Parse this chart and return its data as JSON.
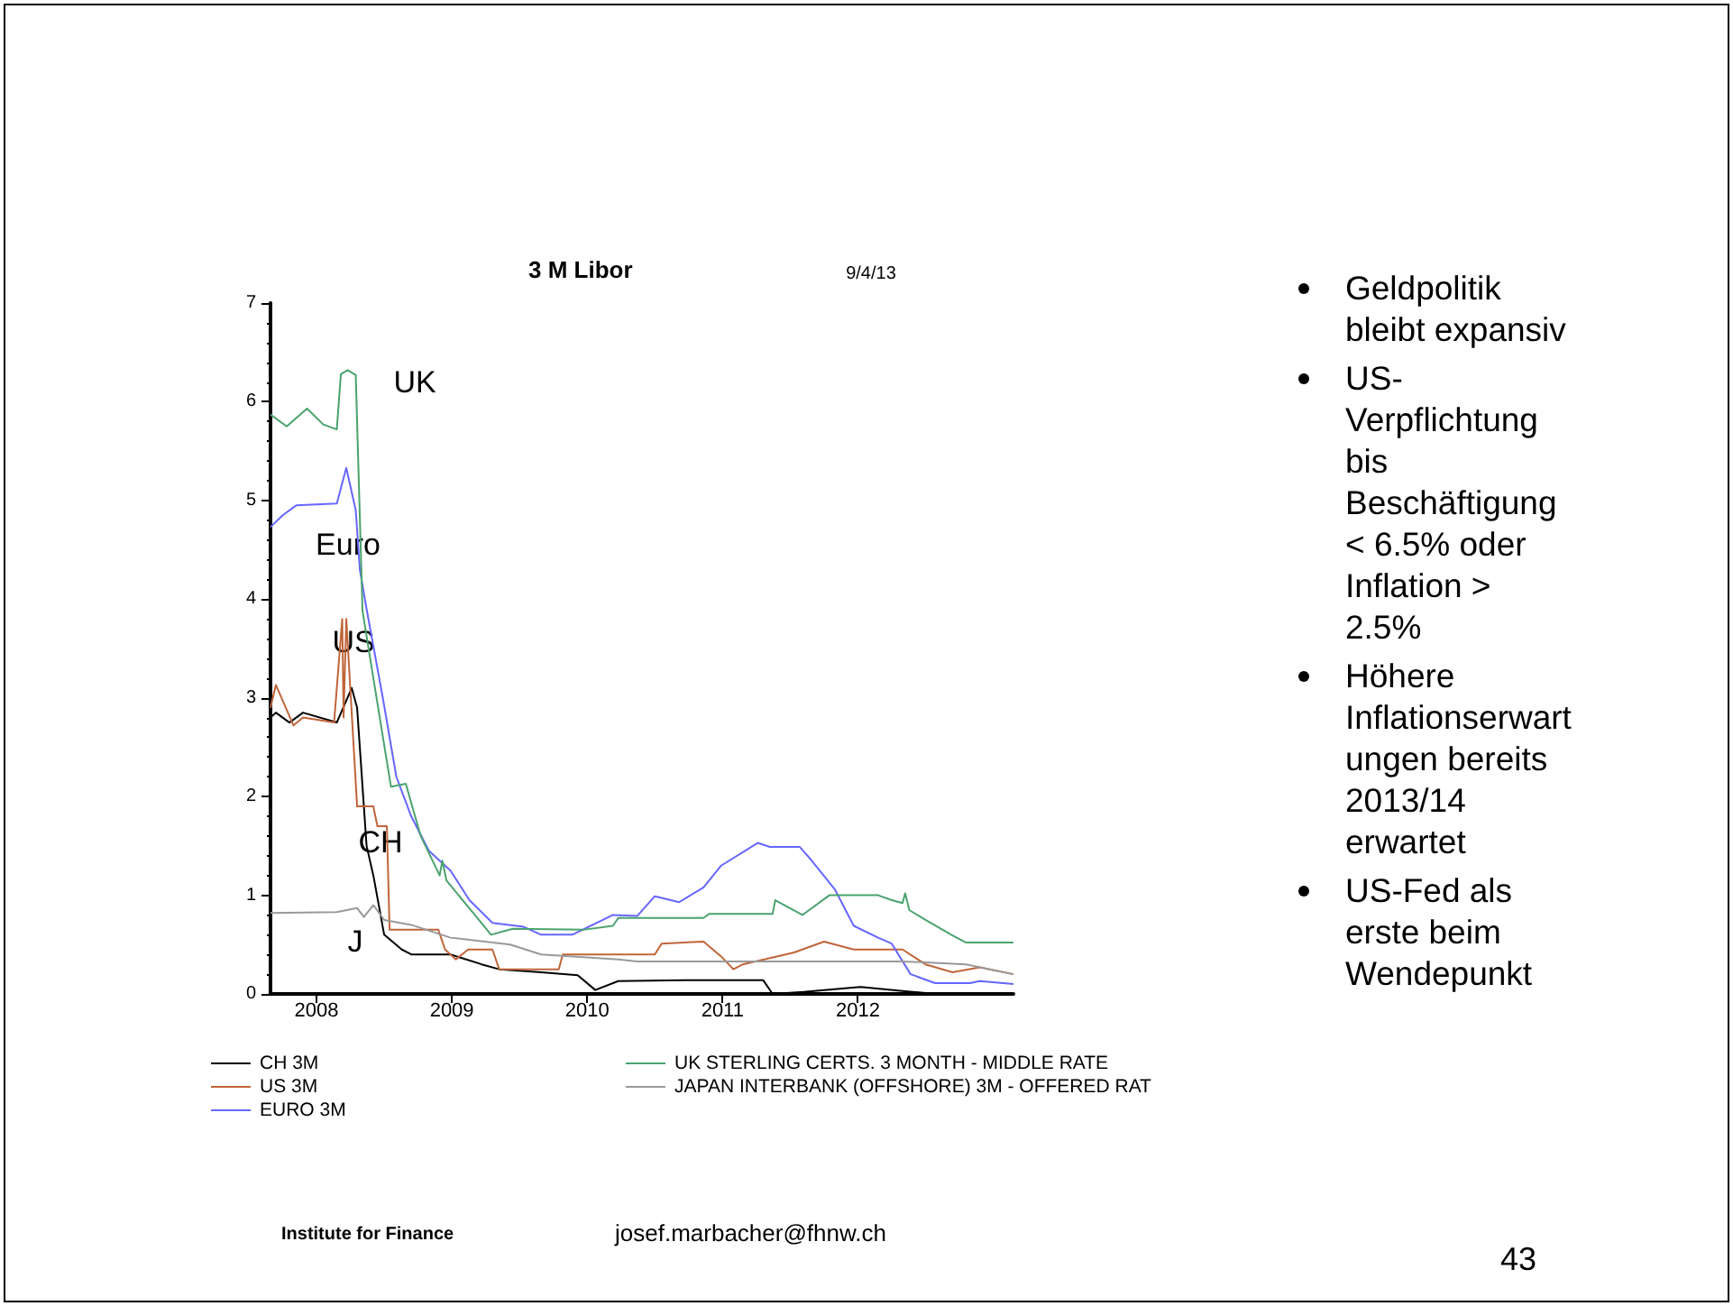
{
  "chart_data": {
    "type": "line",
    "title": "3 M Libor",
    "xlim": [
      2008.16,
      2013.65
    ],
    "xticks": [
      {
        "value": 2008.5,
        "label": "2008"
      },
      {
        "value": 2009.5,
        "label": "2009"
      },
      {
        "value": 2010.5,
        "label": "2010"
      },
      {
        "value": 2011.5,
        "label": "2011"
      },
      {
        "value": 2012.5,
        "label": "2012"
      }
    ],
    "ylim": [
      0,
      7
    ],
    "yticks": [
      0,
      1,
      2,
      3,
      4,
      5,
      6,
      7
    ],
    "grid": false,
    "legend": "bottom",
    "marker": "none",
    "line_style": "solid",
    "series": [
      {
        "name": "CH 3M",
        "color": "#000000",
        "x": [
          2008.16,
          2008.2,
          2008.3,
          2008.4,
          2008.65,
          2008.76,
          2008.8,
          2008.87,
          2008.92,
          2009.0,
          2009.13,
          2009.2,
          2009.49,
          2009.72,
          2009.85,
          2010.16,
          2010.43,
          2010.56,
          2010.73,
          2011.23,
          2011.8,
          2011.87,
          2012.1,
          2012.52,
          2012.83,
          2013.0,
          2013.65
        ],
        "values": [
          2.8,
          2.85,
          2.75,
          2.85,
          2.75,
          3.1,
          2.9,
          1.5,
          1.2,
          0.6,
          0.45,
          0.4,
          0.4,
          0.3,
          0.25,
          0.22,
          0.19,
          0.04,
          0.13,
          0.14,
          0.14,
          0.0,
          0.02,
          0.07,
          0.03,
          0.01,
          0.01
        ]
      },
      {
        "name": "US 3M",
        "color": "#c0653a",
        "x": [
          2008.16,
          2008.2,
          2008.33,
          2008.4,
          2008.63,
          2008.69,
          2008.7,
          2008.72,
          2008.8,
          2008.92,
          2008.95,
          2009.02,
          2009.04,
          2009.4,
          2009.45,
          2009.53,
          2009.62,
          2009.8,
          2009.85,
          2010.29,
          2010.32,
          2011.0,
          2011.05,
          2011.36,
          2011.49,
          2011.58,
          2011.65,
          2012.03,
          2012.25,
          2012.47,
          2012.83,
          2013.0,
          2013.2,
          2013.4,
          2013.65
        ],
        "values": [
          2.9,
          3.13,
          2.72,
          2.8,
          2.75,
          3.8,
          2.8,
          3.8,
          1.9,
          1.9,
          1.7,
          1.7,
          0.65,
          0.65,
          0.45,
          0.35,
          0.45,
          0.45,
          0.25,
          0.25,
          0.4,
          0.4,
          0.51,
          0.53,
          0.38,
          0.25,
          0.3,
          0.42,
          0.53,
          0.45,
          0.45,
          0.3,
          0.22,
          0.27,
          0.2
        ]
      },
      {
        "name": "EURO 3M",
        "color": "#6666ff",
        "x": [
          2008.16,
          2008.25,
          2008.35,
          2008.65,
          2008.72,
          2008.79,
          2008.82,
          2008.87,
          2008.99,
          2009.09,
          2009.2,
          2009.33,
          2009.49,
          2009.63,
          2009.8,
          2010.03,
          2010.16,
          2010.39,
          2010.69,
          2010.87,
          2011.0,
          2011.18,
          2011.36,
          2011.49,
          2011.76,
          2011.85,
          2012.07,
          2012.16,
          2012.33,
          2012.47,
          2012.65,
          2012.75,
          2012.89,
          2013.07,
          2013.33,
          2013.4,
          2013.65
        ],
        "values": [
          4.73,
          4.85,
          4.95,
          4.97,
          5.33,
          4.9,
          4.3,
          3.9,
          3.0,
          2.2,
          1.8,
          1.45,
          1.25,
          0.95,
          0.72,
          0.68,
          0.6,
          0.6,
          0.8,
          0.79,
          0.99,
          0.93,
          1.08,
          1.3,
          1.53,
          1.49,
          1.49,
          1.35,
          1.06,
          0.69,
          0.57,
          0.51,
          0.2,
          0.11,
          0.11,
          0.13,
          0.1
        ]
      },
      {
        "name": "UK STERLING CERTS. 3 MONTH - MIDDLE RATE",
        "color": "#4aa36e",
        "x": [
          2008.16,
          2008.28,
          2008.43,
          2008.55,
          2008.65,
          2008.68,
          2008.73,
          2008.79,
          2008.84,
          2008.92,
          2009.05,
          2009.16,
          2009.27,
          2009.41,
          2009.43,
          2009.46,
          2009.67,
          2009.79,
          2009.95,
          2010.47,
          2010.69,
          2010.73,
          2011.36,
          2011.4,
          2011.87,
          2011.89,
          2012.09,
          2012.29,
          2012.65,
          2012.75,
          2012.83,
          2012.85,
          2012.88,
          2013.0,
          2013.19,
          2013.3,
          2013.65
        ],
        "values": [
          5.87,
          5.75,
          5.93,
          5.77,
          5.72,
          6.28,
          6.32,
          6.27,
          3.88,
          3.2,
          2.1,
          2.13,
          1.6,
          1.2,
          1.35,
          1.15,
          0.8,
          0.6,
          0.66,
          0.65,
          0.69,
          0.77,
          0.77,
          0.81,
          0.81,
          0.95,
          0.8,
          1.0,
          1.0,
          0.95,
          0.92,
          1.02,
          0.85,
          0.75,
          0.6,
          0.52,
          0.52
        ]
      },
      {
        "name": "JAPAN INTERBANK (OFFSHORE) 3M - OFFERED RAT",
        "color": "#999999",
        "x": [
          2008.16,
          2008.65,
          2008.8,
          2008.85,
          2008.92,
          2009.0,
          2009.2,
          2009.49,
          2009.93,
          2010.16,
          2010.73,
          2010.87,
          2012.83,
          2013.3,
          2013.65
        ],
        "values": [
          0.82,
          0.83,
          0.87,
          0.78,
          0.9,
          0.75,
          0.7,
          0.57,
          0.5,
          0.4,
          0.35,
          0.33,
          0.33,
          0.3,
          0.2
        ]
      }
    ],
    "annotations": [
      "UK",
      "Euro",
      "US",
      "CH",
      "J",
      "9/4/13",
      "Geldpolitik bleibt expansiv",
      "US-Verpflichtung bis Beschäftigung < 6.5% oder Inflation > 2.5%",
      "Höhere Inflationserwartungen bereits 2013/14 erwartet",
      "US-Fed als erste beim Wendepunkt",
      "Institute for Finance",
      "josef.marbacher@fhnw.ch",
      "43"
    ]
  }
}
